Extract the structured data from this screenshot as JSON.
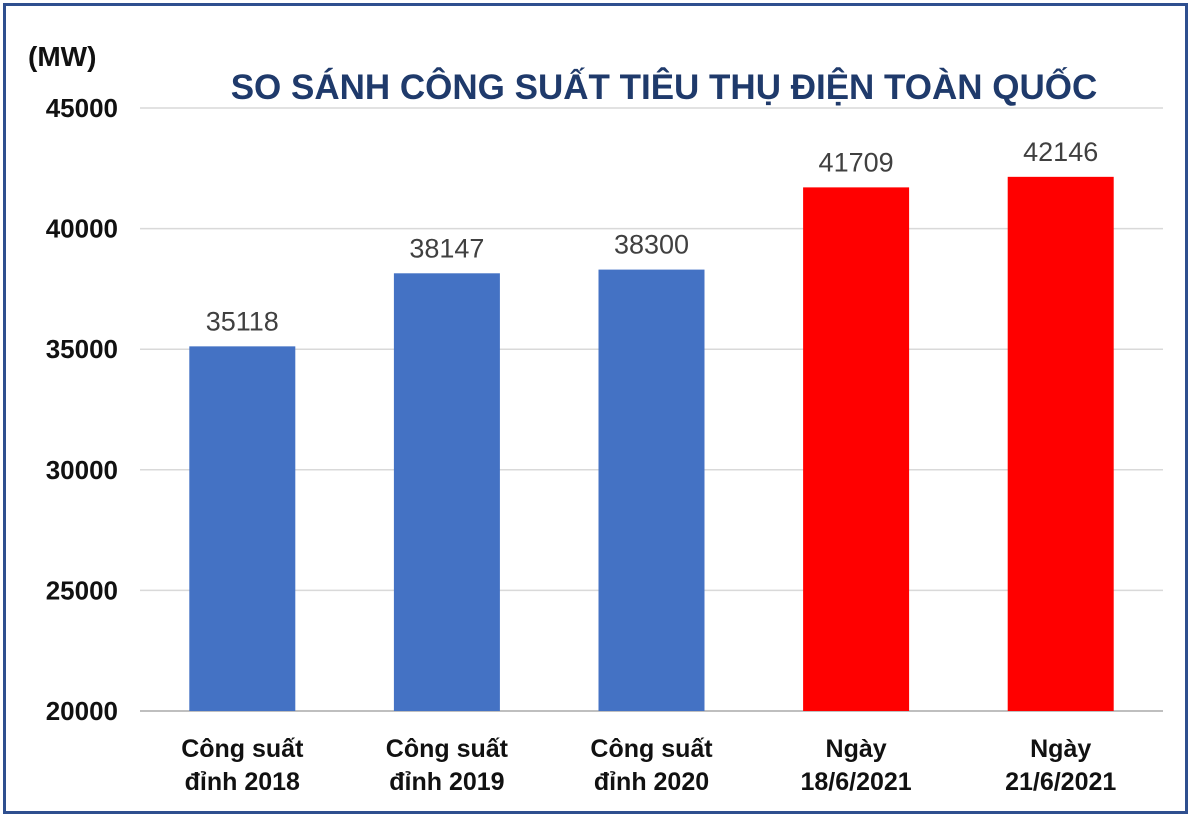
{
  "chart_data": {
    "type": "bar",
    "title": "SO SÁNH CÔNG SUẤT TIÊU THỤ ĐIỆN TOÀN QUỐC",
    "ylabel": "(MW)",
    "xlabel": "",
    "ylim": [
      20000,
      45000
    ],
    "yticks": [
      20000,
      25000,
      30000,
      35000,
      40000,
      45000
    ],
    "grid": true,
    "categories": [
      [
        "Công suất",
        "đỉnh 2018"
      ],
      [
        "Công suất",
        "đỉnh 2019"
      ],
      [
        "Công suất",
        "đỉnh 2020"
      ],
      [
        "Ngày",
        "18/6/2021"
      ],
      [
        "Ngày",
        "21/6/2021"
      ]
    ],
    "values": [
      35118,
      38147,
      38300,
      41709,
      42146
    ],
    "bar_colors": [
      "#4472c4",
      "#4472c4",
      "#4472c4",
      "#ff0000",
      "#ff0000"
    ]
  }
}
